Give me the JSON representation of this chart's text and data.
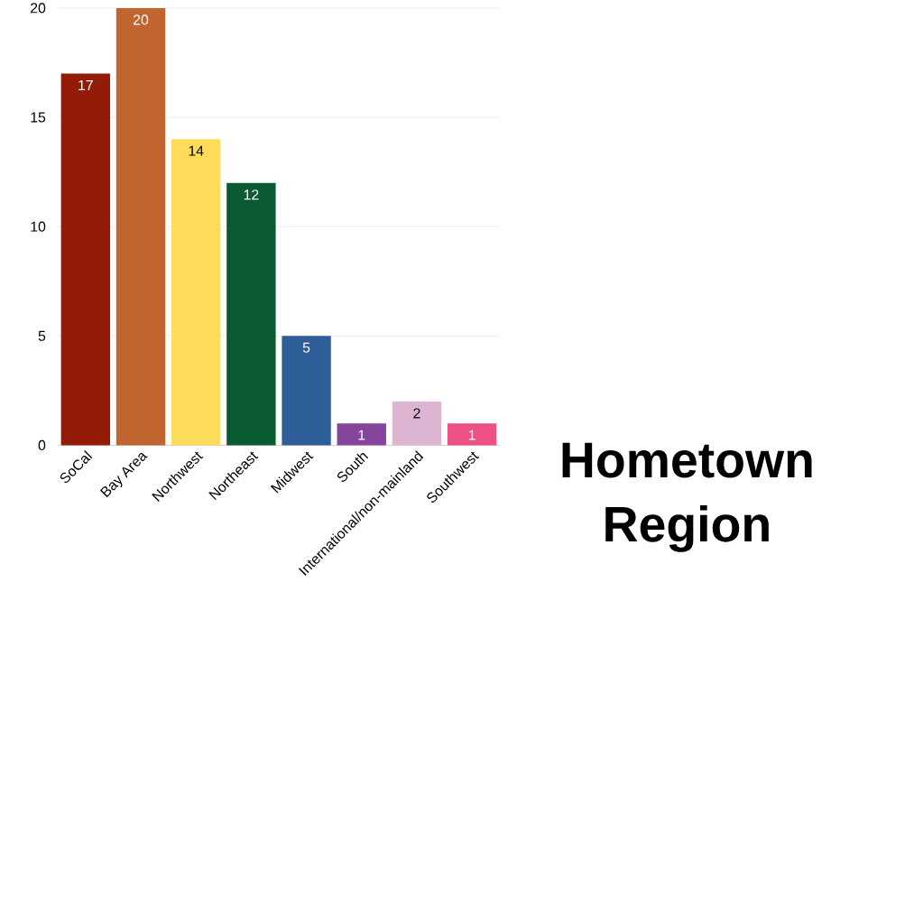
{
  "chart_data": {
    "type": "bar",
    "title": "Hometown Region",
    "categories": [
      "SoCal",
      "Bay Area",
      "Northwest",
      "Northeast",
      "Midwest",
      "South",
      "International/non-mainland",
      "Southwest"
    ],
    "values": [
      17,
      20,
      14,
      12,
      5,
      1,
      2,
      1
    ],
    "colors": [
      "#931c09",
      "#c0652f",
      "#fedc5a",
      "#0a5a32",
      "#2e5f98",
      "#86459c",
      "#ddb4d2",
      "#ec5085"
    ],
    "ylim": [
      0,
      20
    ],
    "yticks": [
      0,
      5,
      10,
      15,
      20
    ],
    "grid": "y",
    "data_labels": true
  }
}
